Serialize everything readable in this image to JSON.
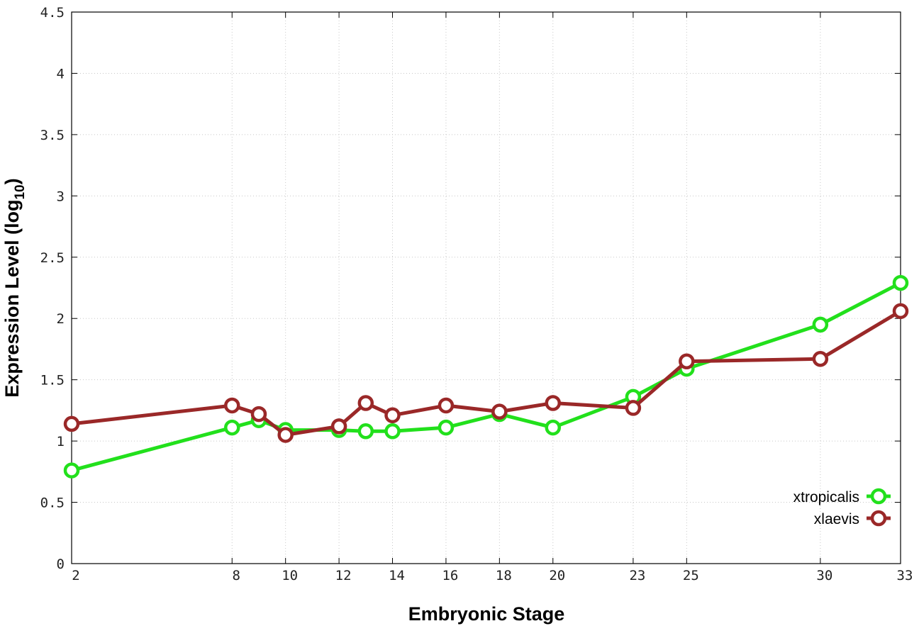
{
  "chart_data": {
    "type": "line",
    "xlabel": "Embryonic Stage",
    "ylabel_main": "Expression Level (log",
    "ylabel_sub": "10",
    "ylabel_end": ")",
    "xlim": [
      2,
      33
    ],
    "ylim": [
      0,
      4.5
    ],
    "x_tick_values": [
      2,
      8,
      10,
      12,
      14,
      16,
      18,
      20,
      23,
      25,
      30,
      33
    ],
    "x_tick_labels": [
      "2",
      "8",
      "10",
      "12",
      "14",
      "16",
      "18",
      "20",
      "23",
      "25",
      "30",
      "33"
    ],
    "y_tick_values": [
      0,
      0.5,
      1,
      1.5,
      2,
      2.5,
      3,
      3.5,
      4,
      4.5
    ],
    "y_tick_labels": [
      "0",
      "0.5",
      "1",
      "1.5",
      "2",
      "2.5",
      "3",
      "3.5",
      "4",
      "4.5"
    ],
    "grid": true,
    "legend_position": "bottom-right",
    "series": [
      {
        "name": "xtropicalis",
        "color": "#22e01c",
        "x": [
          2,
          8,
          9,
          10,
          12,
          13,
          14,
          16,
          18,
          20,
          23,
          25,
          30,
          33
        ],
        "y": [
          0.76,
          1.11,
          1.17,
          1.09,
          1.09,
          1.08,
          1.08,
          1.11,
          1.22,
          1.11,
          1.36,
          1.59,
          1.95,
          2.29
        ]
      },
      {
        "name": "xlaevis",
        "color": "#9a2828",
        "x": [
          2,
          8,
          9,
          10,
          12,
          13,
          14,
          16,
          18,
          20,
          23,
          25,
          30,
          33
        ],
        "y": [
          1.14,
          1.29,
          1.22,
          1.05,
          1.12,
          1.31,
          1.21,
          1.29,
          1.24,
          1.31,
          1.27,
          1.65,
          1.67,
          2.06
        ]
      }
    ]
  }
}
